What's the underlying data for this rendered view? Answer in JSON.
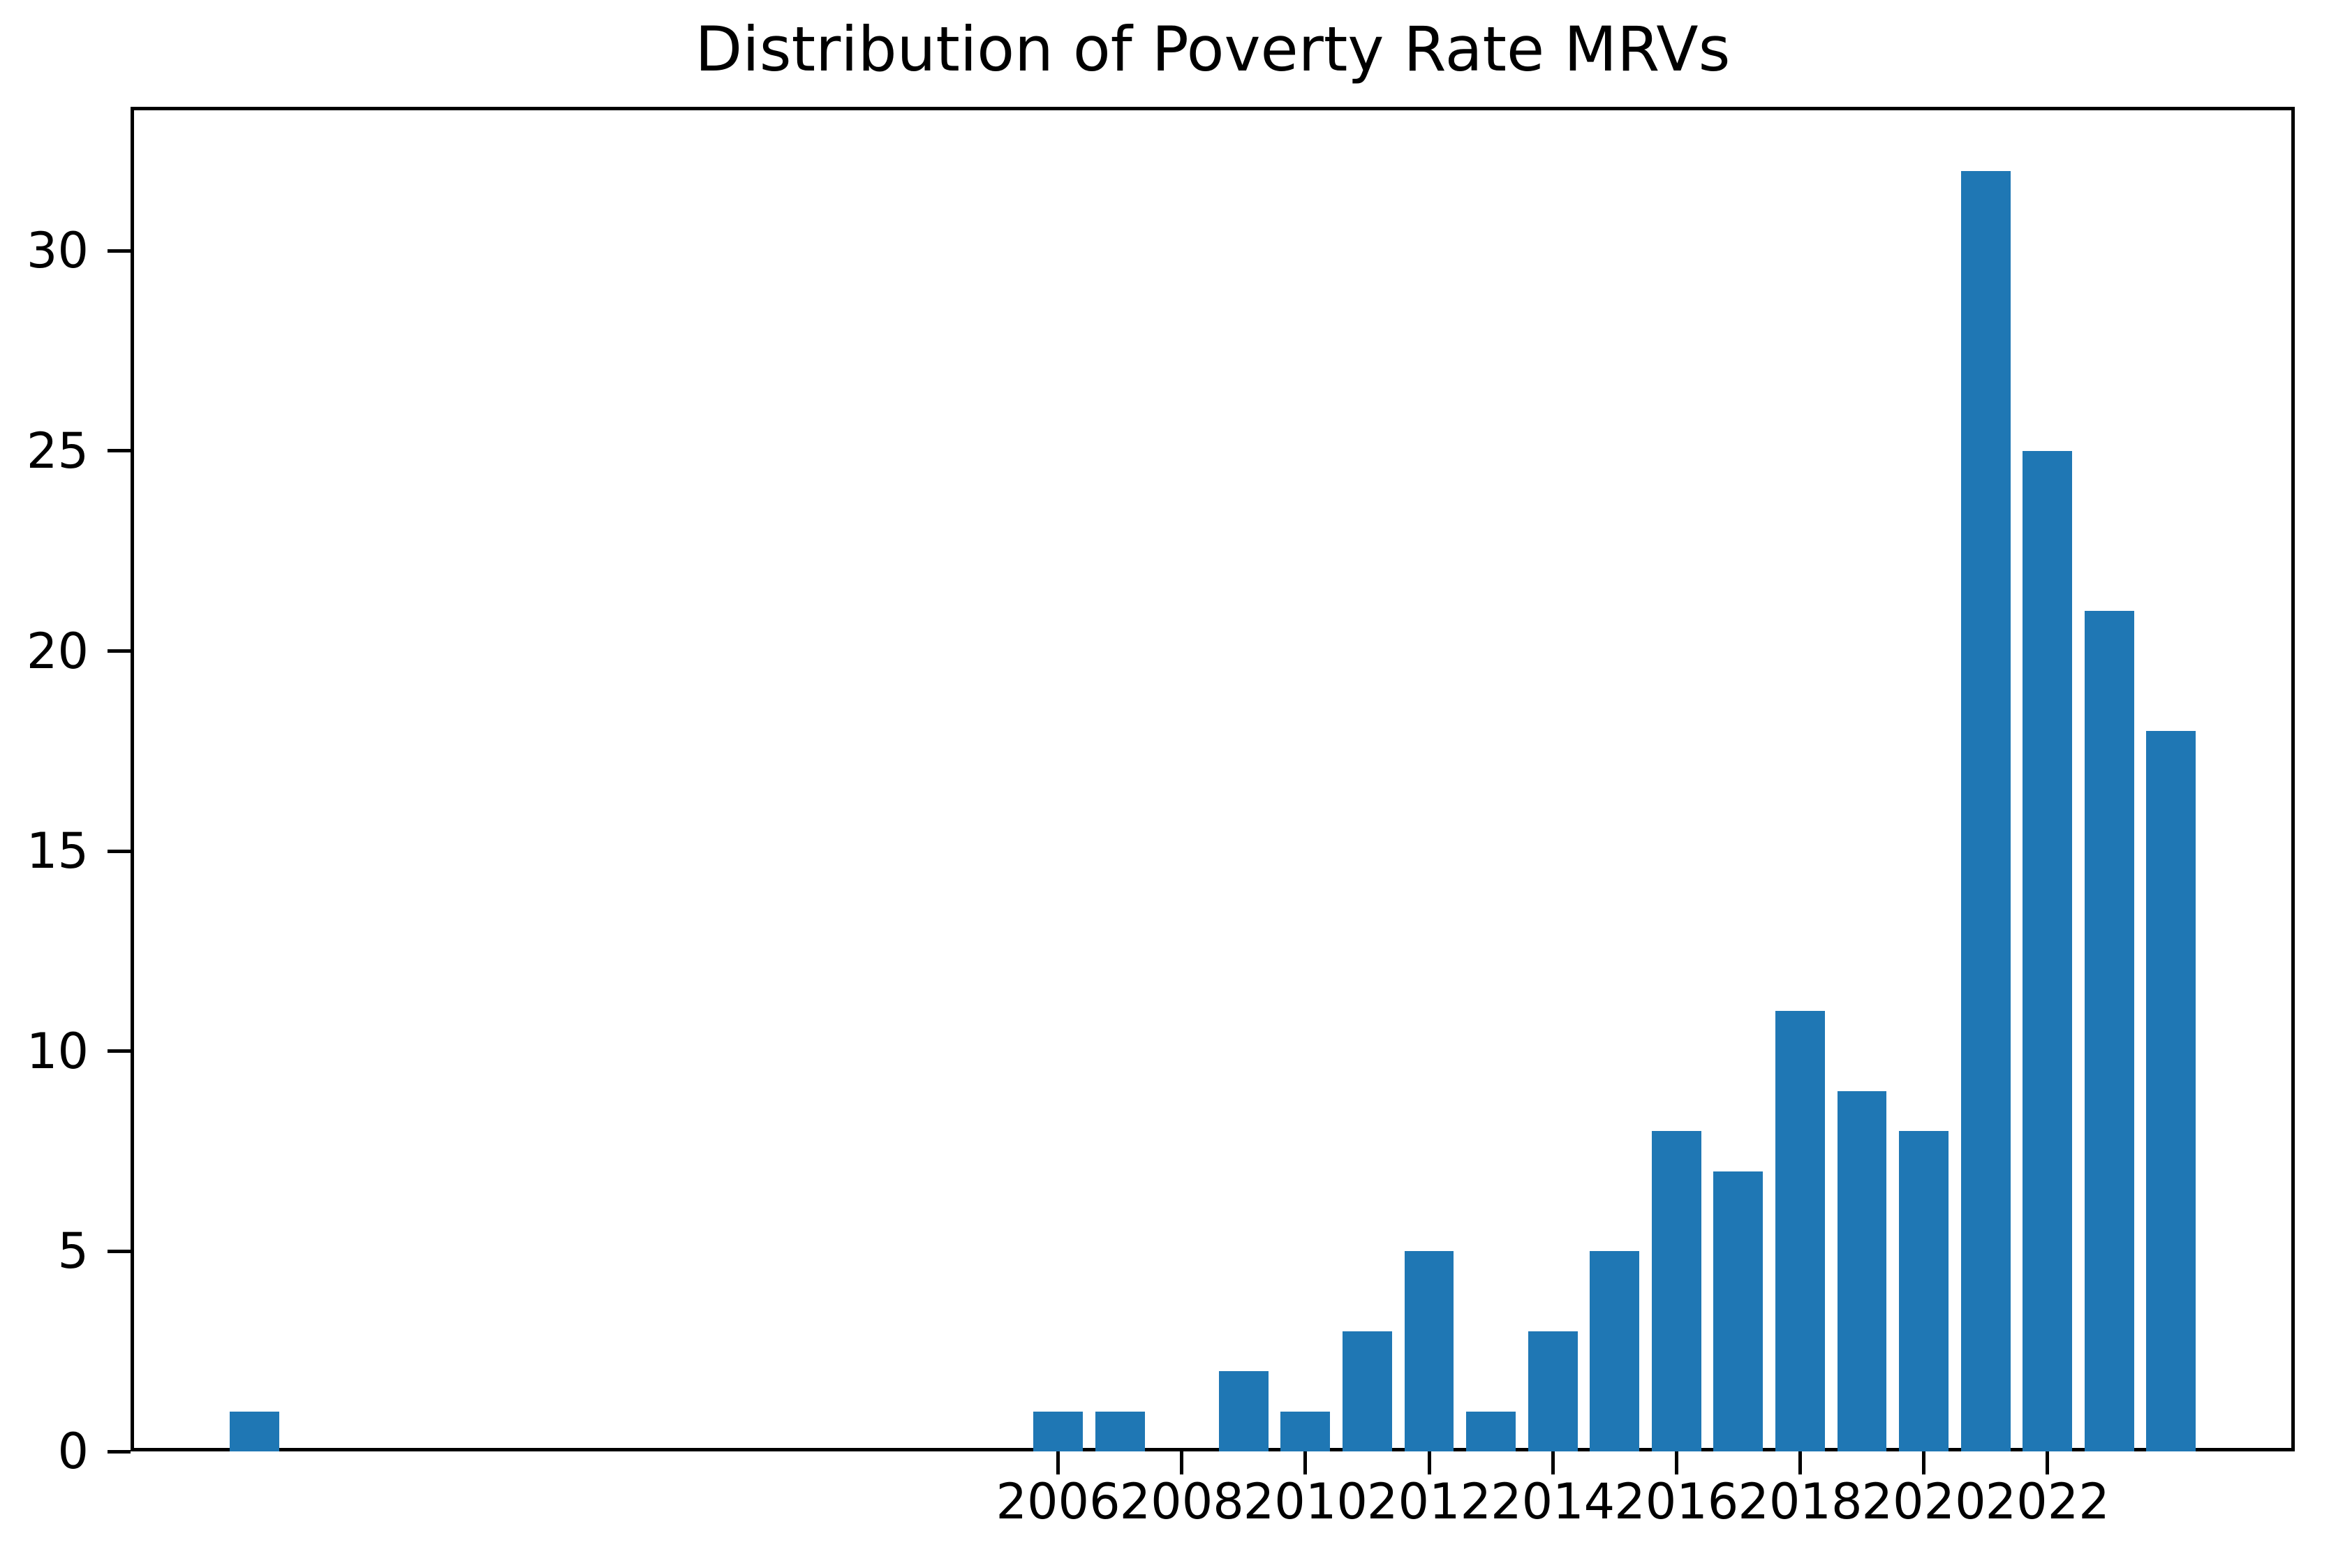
{
  "chart_data": {
    "type": "bar",
    "title": "Distribution of Poverty Rate MRVs",
    "xlabel": "",
    "ylabel": "",
    "x": [
      1993,
      2006,
      2007,
      2009,
      2010,
      2011,
      2012,
      2013,
      2014,
      2015,
      2016,
      2017,
      2018,
      2019,
      2020,
      2021,
      2022,
      2023,
      2024
    ],
    "values": [
      1,
      1,
      1,
      2,
      1,
      3,
      5,
      1,
      3,
      5,
      8,
      7,
      11,
      9,
      8,
      32,
      25,
      21,
      18
    ],
    "bar_width_years": 0.8,
    "bar_color": "#1f77b4",
    "xlim": [
      1991.0,
      2026.0
    ],
    "ylim": [
      0,
      33.6
    ],
    "xticks": [
      2006,
      2008,
      2010,
      2012,
      2014,
      2016,
      2018,
      2020,
      2022
    ],
    "xtick_labels": [
      "2006",
      "2008",
      "2010",
      "2012",
      "2014",
      "2016",
      "2018",
      "2020",
      "2022"
    ],
    "yticks": [
      0,
      5,
      10,
      15,
      20,
      25,
      30
    ],
    "ytick_labels": [
      "0",
      "5",
      "10",
      "15",
      "20",
      "25",
      "30"
    ],
    "grid": false,
    "legend": null,
    "axes_color": "#000000",
    "text_color": "#000000",
    "background_color": "#ffffff"
  }
}
